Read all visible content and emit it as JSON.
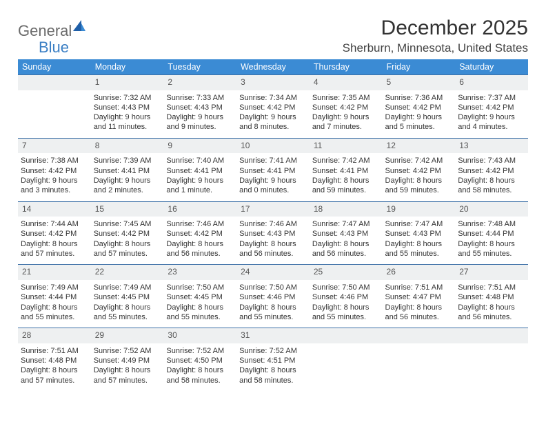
{
  "logo": {
    "general": "General",
    "blue": "Blue"
  },
  "title": "December 2025",
  "location": "Sherburn, Minnesota, United States",
  "colors": {
    "header_bg": "#3b8bd4",
    "header_text": "#ffffff",
    "daynum_bg": "#eef0f1",
    "border": "#3b6fa6",
    "logo_gray": "#6b6b6b",
    "logo_blue": "#3b7fc4"
  },
  "weekdays": [
    "Sunday",
    "Monday",
    "Tuesday",
    "Wednesday",
    "Thursday",
    "Friday",
    "Saturday"
  ],
  "weeks": [
    {
      "nums": [
        "",
        "1",
        "2",
        "3",
        "4",
        "5",
        "6"
      ],
      "cells": [
        null,
        {
          "sunrise": "Sunrise: 7:32 AM",
          "sunset": "Sunset: 4:43 PM",
          "day1": "Daylight: 9 hours",
          "day2": "and 11 minutes."
        },
        {
          "sunrise": "Sunrise: 7:33 AM",
          "sunset": "Sunset: 4:43 PM",
          "day1": "Daylight: 9 hours",
          "day2": "and 9 minutes."
        },
        {
          "sunrise": "Sunrise: 7:34 AM",
          "sunset": "Sunset: 4:42 PM",
          "day1": "Daylight: 9 hours",
          "day2": "and 8 minutes."
        },
        {
          "sunrise": "Sunrise: 7:35 AM",
          "sunset": "Sunset: 4:42 PM",
          "day1": "Daylight: 9 hours",
          "day2": "and 7 minutes."
        },
        {
          "sunrise": "Sunrise: 7:36 AM",
          "sunset": "Sunset: 4:42 PM",
          "day1": "Daylight: 9 hours",
          "day2": "and 5 minutes."
        },
        {
          "sunrise": "Sunrise: 7:37 AM",
          "sunset": "Sunset: 4:42 PM",
          "day1": "Daylight: 9 hours",
          "day2": "and 4 minutes."
        }
      ]
    },
    {
      "nums": [
        "7",
        "8",
        "9",
        "10",
        "11",
        "12",
        "13"
      ],
      "cells": [
        {
          "sunrise": "Sunrise: 7:38 AM",
          "sunset": "Sunset: 4:42 PM",
          "day1": "Daylight: 9 hours",
          "day2": "and 3 minutes."
        },
        {
          "sunrise": "Sunrise: 7:39 AM",
          "sunset": "Sunset: 4:41 PM",
          "day1": "Daylight: 9 hours",
          "day2": "and 2 minutes."
        },
        {
          "sunrise": "Sunrise: 7:40 AM",
          "sunset": "Sunset: 4:41 PM",
          "day1": "Daylight: 9 hours",
          "day2": "and 1 minute."
        },
        {
          "sunrise": "Sunrise: 7:41 AM",
          "sunset": "Sunset: 4:41 PM",
          "day1": "Daylight: 9 hours",
          "day2": "and 0 minutes."
        },
        {
          "sunrise": "Sunrise: 7:42 AM",
          "sunset": "Sunset: 4:41 PM",
          "day1": "Daylight: 8 hours",
          "day2": "and 59 minutes."
        },
        {
          "sunrise": "Sunrise: 7:42 AM",
          "sunset": "Sunset: 4:42 PM",
          "day1": "Daylight: 8 hours",
          "day2": "and 59 minutes."
        },
        {
          "sunrise": "Sunrise: 7:43 AM",
          "sunset": "Sunset: 4:42 PM",
          "day1": "Daylight: 8 hours",
          "day2": "and 58 minutes."
        }
      ]
    },
    {
      "nums": [
        "14",
        "15",
        "16",
        "17",
        "18",
        "19",
        "20"
      ],
      "cells": [
        {
          "sunrise": "Sunrise: 7:44 AM",
          "sunset": "Sunset: 4:42 PM",
          "day1": "Daylight: 8 hours",
          "day2": "and 57 minutes."
        },
        {
          "sunrise": "Sunrise: 7:45 AM",
          "sunset": "Sunset: 4:42 PM",
          "day1": "Daylight: 8 hours",
          "day2": "and 57 minutes."
        },
        {
          "sunrise": "Sunrise: 7:46 AM",
          "sunset": "Sunset: 4:42 PM",
          "day1": "Daylight: 8 hours",
          "day2": "and 56 minutes."
        },
        {
          "sunrise": "Sunrise: 7:46 AM",
          "sunset": "Sunset: 4:43 PM",
          "day1": "Daylight: 8 hours",
          "day2": "and 56 minutes."
        },
        {
          "sunrise": "Sunrise: 7:47 AM",
          "sunset": "Sunset: 4:43 PM",
          "day1": "Daylight: 8 hours",
          "day2": "and 56 minutes."
        },
        {
          "sunrise": "Sunrise: 7:47 AM",
          "sunset": "Sunset: 4:43 PM",
          "day1": "Daylight: 8 hours",
          "day2": "and 55 minutes."
        },
        {
          "sunrise": "Sunrise: 7:48 AM",
          "sunset": "Sunset: 4:44 PM",
          "day1": "Daylight: 8 hours",
          "day2": "and 55 minutes."
        }
      ]
    },
    {
      "nums": [
        "21",
        "22",
        "23",
        "24",
        "25",
        "26",
        "27"
      ],
      "cells": [
        {
          "sunrise": "Sunrise: 7:49 AM",
          "sunset": "Sunset: 4:44 PM",
          "day1": "Daylight: 8 hours",
          "day2": "and 55 minutes."
        },
        {
          "sunrise": "Sunrise: 7:49 AM",
          "sunset": "Sunset: 4:45 PM",
          "day1": "Daylight: 8 hours",
          "day2": "and 55 minutes."
        },
        {
          "sunrise": "Sunrise: 7:50 AM",
          "sunset": "Sunset: 4:45 PM",
          "day1": "Daylight: 8 hours",
          "day2": "and 55 minutes."
        },
        {
          "sunrise": "Sunrise: 7:50 AM",
          "sunset": "Sunset: 4:46 PM",
          "day1": "Daylight: 8 hours",
          "day2": "and 55 minutes."
        },
        {
          "sunrise": "Sunrise: 7:50 AM",
          "sunset": "Sunset: 4:46 PM",
          "day1": "Daylight: 8 hours",
          "day2": "and 55 minutes."
        },
        {
          "sunrise": "Sunrise: 7:51 AM",
          "sunset": "Sunset: 4:47 PM",
          "day1": "Daylight: 8 hours",
          "day2": "and 56 minutes."
        },
        {
          "sunrise": "Sunrise: 7:51 AM",
          "sunset": "Sunset: 4:48 PM",
          "day1": "Daylight: 8 hours",
          "day2": "and 56 minutes."
        }
      ]
    },
    {
      "nums": [
        "28",
        "29",
        "30",
        "31",
        "",
        "",
        ""
      ],
      "cells": [
        {
          "sunrise": "Sunrise: 7:51 AM",
          "sunset": "Sunset: 4:48 PM",
          "day1": "Daylight: 8 hours",
          "day2": "and 57 minutes."
        },
        {
          "sunrise": "Sunrise: 7:52 AM",
          "sunset": "Sunset: 4:49 PM",
          "day1": "Daylight: 8 hours",
          "day2": "and 57 minutes."
        },
        {
          "sunrise": "Sunrise: 7:52 AM",
          "sunset": "Sunset: 4:50 PM",
          "day1": "Daylight: 8 hours",
          "day2": "and 58 minutes."
        },
        {
          "sunrise": "Sunrise: 7:52 AM",
          "sunset": "Sunset: 4:51 PM",
          "day1": "Daylight: 8 hours",
          "day2": "and 58 minutes."
        },
        null,
        null,
        null
      ]
    }
  ]
}
